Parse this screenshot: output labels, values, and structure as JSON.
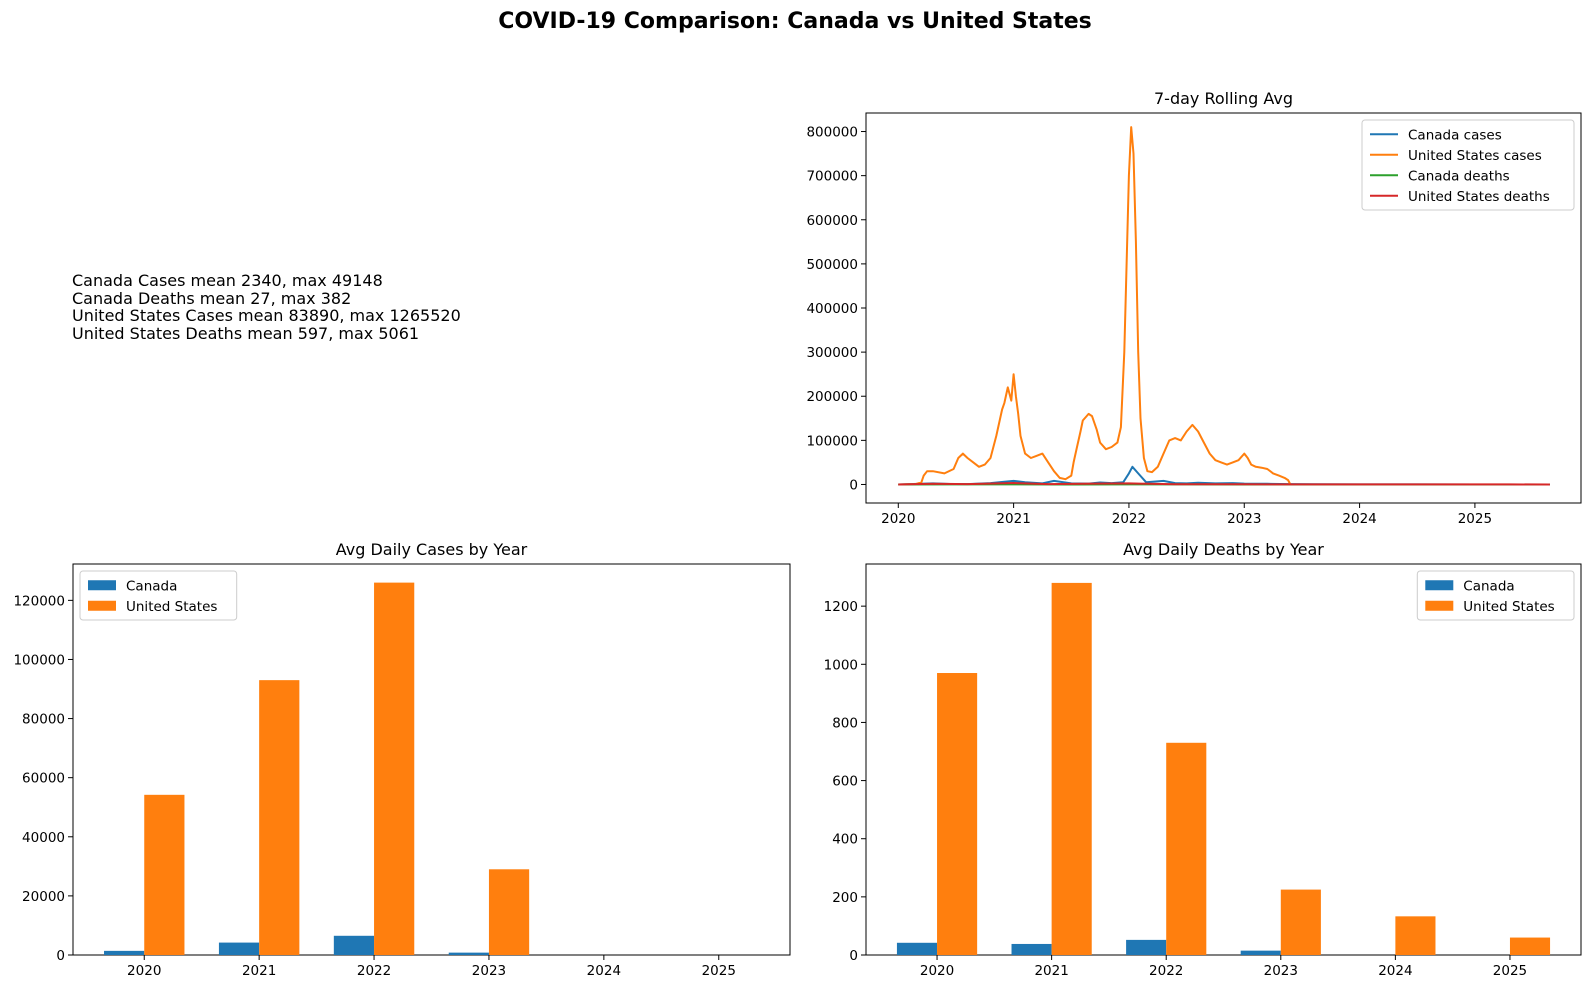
{
  "figure": {
    "suptitle": "COVID-19 Comparison: Canada vs United States"
  },
  "stats_panel": {
    "lines": [
      "Canada Cases mean 2340, max 49148",
      "Canada Deaths mean 27, max 382",
      "United States Cases mean 83890, max 1265520",
      "United States Deaths mean 597, max 5061"
    ]
  },
  "chart_data": [
    {
      "type": "line",
      "title": "7-day Rolling Avg",
      "xlabel": "",
      "ylabel": "",
      "xlim": [
        2019.72,
        2025.92
      ],
      "ylim": [
        -42000,
        842000
      ],
      "xticks": [
        2020,
        2021,
        2022,
        2023,
        2024,
        2025
      ],
      "xtick_labels": [
        "2020",
        "2021",
        "2022",
        "2023",
        "2024",
        "2025"
      ],
      "yticks": [
        0,
        100000,
        200000,
        300000,
        400000,
        500000,
        600000,
        700000,
        800000
      ],
      "ytick_labels": [
        "0",
        "100000",
        "200000",
        "300000",
        "400000",
        "500000",
        "600000",
        "700000",
        "800000"
      ],
      "grid": false,
      "legend_position": "upper right",
      "series": [
        {
          "name": "Canada cases",
          "color": "#1f77b4",
          "x": [
            2020.0,
            2020.2,
            2020.3,
            2020.45,
            2020.6,
            2020.8,
            2020.92,
            2021.0,
            2021.1,
            2021.25,
            2021.35,
            2021.5,
            2021.65,
            2021.75,
            2021.85,
            2021.95,
            2022.0,
            2022.03,
            2022.08,
            2022.15,
            2022.3,
            2022.4,
            2022.5,
            2022.6,
            2022.75,
            2022.9,
            2023.0,
            2023.2,
            2023.4,
            2023.6,
            2024.0,
            2024.5,
            2025.0,
            2025.5,
            2025.65
          ],
          "y": [
            0,
            1500,
            2500,
            1000,
            800,
            3000,
            6000,
            8000,
            5000,
            2500,
            8000,
            2500,
            2000,
            4500,
            3000,
            5000,
            25000,
            40000,
            25000,
            5000,
            8000,
            3000,
            2500,
            4000,
            2500,
            3000,
            2000,
            1500,
            800,
            300,
            100,
            50,
            20,
            10,
            0
          ]
        },
        {
          "name": "United States cases",
          "color": "#ff7f0e",
          "x": [
            2020.0,
            2020.15,
            2020.2,
            2020.22,
            2020.25,
            2020.3,
            2020.4,
            2020.48,
            2020.52,
            2020.56,
            2020.6,
            2020.65,
            2020.7,
            2020.75,
            2020.8,
            2020.85,
            2020.9,
            2020.92,
            2020.95,
            2020.98,
            2021.0,
            2021.02,
            2021.04,
            2021.06,
            2021.1,
            2021.15,
            2021.2,
            2021.25,
            2021.3,
            2021.35,
            2021.4,
            2021.45,
            2021.5,
            2021.52,
            2021.55,
            2021.58,
            2021.6,
            2021.65,
            2021.68,
            2021.72,
            2021.75,
            2021.8,
            2021.85,
            2021.9,
            2021.93,
            2021.96,
            2021.98,
            2022.0,
            2022.02,
            2022.04,
            2022.06,
            2022.08,
            2022.1,
            2022.13,
            2022.16,
            2022.2,
            2022.25,
            2022.3,
            2022.35,
            2022.4,
            2022.45,
            2022.5,
            2022.55,
            2022.6,
            2022.65,
            2022.7,
            2022.75,
            2022.8,
            2022.85,
            2022.9,
            2022.95,
            2023.0,
            2023.03,
            2023.06,
            2023.1,
            2023.15,
            2023.2,
            2023.25,
            2023.3,
            2023.35,
            2023.38,
            2023.4
          ],
          "y": [
            0,
            800,
            5000,
            20000,
            30000,
            30000,
            25000,
            35000,
            60000,
            70000,
            60000,
            50000,
            40000,
            45000,
            60000,
            110000,
            170000,
            185000,
            220000,
            190000,
            250000,
            200000,
            160000,
            110000,
            70000,
            60000,
            65000,
            70000,
            50000,
            30000,
            15000,
            12000,
            20000,
            50000,
            85000,
            120000,
            145000,
            160000,
            155000,
            125000,
            95000,
            80000,
            85000,
            95000,
            130000,
            300000,
            500000,
            700000,
            810000,
            750000,
            550000,
            300000,
            150000,
            60000,
            30000,
            28000,
            40000,
            70000,
            100000,
            105000,
            100000,
            120000,
            135000,
            120000,
            95000,
            70000,
            55000,
            50000,
            45000,
            50000,
            55000,
            70000,
            60000,
            45000,
            40000,
            38000,
            35000,
            25000,
            20000,
            15000,
            10000,
            0
          ]
        },
        {
          "name": "Canada deaths",
          "color": "#2ca02c",
          "x": [
            2020.0,
            2020.5,
            2021.0,
            2021.5,
            2022.0,
            2022.5,
            2023.0,
            2023.5,
            2024.0,
            2024.5,
            2025.0,
            2025.65
          ],
          "y": [
            0,
            100,
            150,
            40,
            180,
            50,
            40,
            20,
            10,
            5,
            0,
            0
          ]
        },
        {
          "name": "United States deaths",
          "color": "#d62728",
          "x": [
            2020.0,
            2020.3,
            2020.6,
            2021.0,
            2021.3,
            2021.7,
            2022.0,
            2022.4,
            2022.8,
            2023.0,
            2023.4,
            2023.8,
            2024.2,
            2024.6,
            2025.0,
            2025.3,
            2025.65
          ],
          "y": [
            0,
            1800,
            900,
            3300,
            800,
            1900,
            2500,
            400,
            450,
            400,
            200,
            150,
            140,
            120,
            90,
            50,
            0
          ]
        }
      ]
    },
    {
      "type": "bar",
      "title": "Avg Daily Cases by Year",
      "xlabel": "",
      "ylabel": "",
      "ylim": [
        0,
        132300
      ],
      "yticks": [
        0,
        20000,
        40000,
        60000,
        80000,
        100000,
        120000
      ],
      "ytick_labels": [
        "0",
        "20000",
        "40000",
        "60000",
        "80000",
        "100000",
        "120000"
      ],
      "grid": false,
      "legend_position": "upper left",
      "categories": [
        "2020",
        "2021",
        "2022",
        "2023",
        "2024",
        "2025"
      ],
      "series": [
        {
          "name": "Canada",
          "color": "#1f77b4",
          "values": [
            1400,
            4200,
            6500,
            800,
            0,
            0
          ]
        },
        {
          "name": "United States",
          "color": "#ff7f0e",
          "values": [
            54200,
            93000,
            126000,
            29000,
            0,
            0
          ]
        }
      ]
    },
    {
      "type": "bar",
      "title": "Avg Daily Deaths by Year",
      "xlabel": "",
      "ylabel": "",
      "ylim": [
        0,
        1345
      ],
      "yticks": [
        0,
        200,
        400,
        600,
        800,
        1000,
        1200
      ],
      "ytick_labels": [
        "0",
        "200",
        "400",
        "600",
        "800",
        "1000",
        "1200"
      ],
      "grid": false,
      "legend_position": "upper right",
      "categories": [
        "2020",
        "2021",
        "2022",
        "2023",
        "2024",
        "2025"
      ],
      "series": [
        {
          "name": "Canada",
          "color": "#1f77b4",
          "values": [
            42,
            38,
            52,
            15,
            0,
            0
          ]
        },
        {
          "name": "United States",
          "color": "#ff7f0e",
          "values": [
            970,
            1280,
            730,
            225,
            133,
            60
          ]
        }
      ]
    }
  ]
}
